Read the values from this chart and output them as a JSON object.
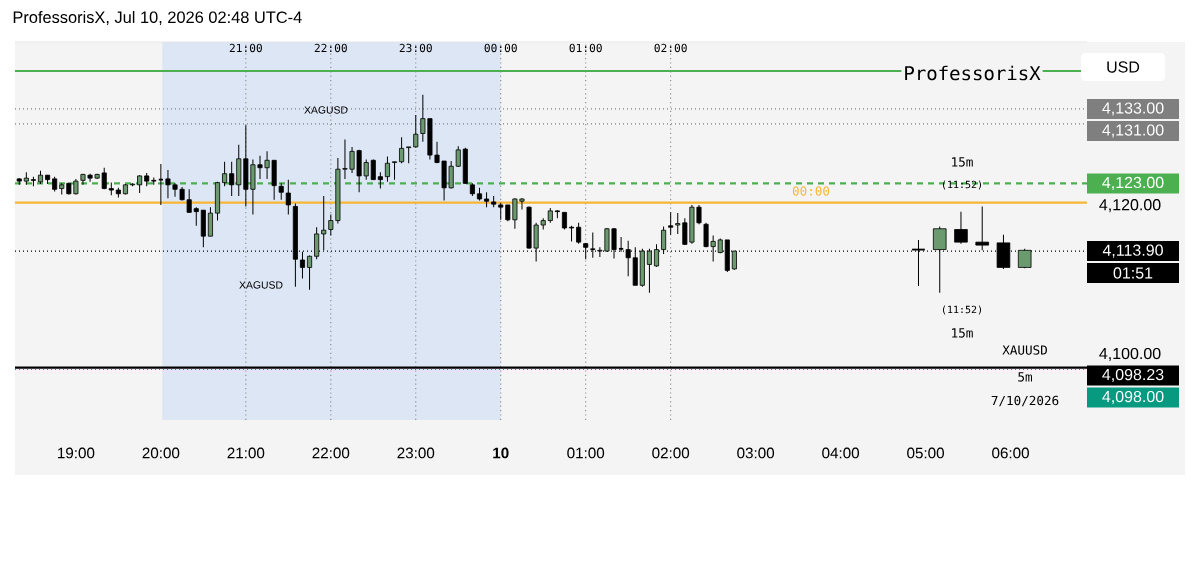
{
  "chart_data": {
    "type": "candlestick",
    "title": "ProfessorisX, Jul 10, 2026 02:48 UTC-4",
    "series": [
      {
        "colors": [
          "#000000",
          "#6b9a6e",
          "#000000",
          "#6b9a6e",
          "#000000",
          "#000000",
          "#6b9a6e",
          "#000000",
          "#6b9a6e",
          "#6b9a6e",
          "#000000",
          "#6b9a6e",
          "#000000",
          "#000000",
          "#000000",
          "#6b9a6e",
          "#6b9a6e",
          "#6b9a6e",
          "#000000",
          "#000000",
          "#000000",
          "#000000",
          "#000000",
          "#000000",
          "#000000",
          "#000000",
          "#000000",
          "#6b9a6e",
          "#6b9a6e",
          "#6b9a6e",
          "#000000",
          "#6b9a6e",
          "#000000",
          "#6b9a6e",
          "#000000",
          "#6b9a6e",
          "#000000",
          "#000000",
          "#000000",
          "#000000",
          "#000000",
          "#6b9a6e",
          "#6b9a6e",
          "#6b9a6e",
          "#6b9a6e",
          "#6b9a6e",
          "#6b9a6e",
          "#6b9a6e",
          "#000000",
          "#6b9a6e",
          "#000000",
          "#000000",
          "#6b9a6e",
          "#6b9a6e",
          "#6b9a6e",
          "#6b9a6e",
          "#6b9a6e",
          "#6b9a6e",
          "#000000",
          "#000000",
          "#000000",
          "#6b9a6e",
          "#6b9a6e",
          "#000000",
          "#000000",
          "#000000",
          "#000000",
          "#000000",
          "#000000",
          "#000000",
          "#6b9a6e",
          "#6b9a6e",
          "#000000",
          "#6b9a6e",
          "#6b9a6e",
          "#6b9a6e",
          "#000000",
          "#000000",
          "#000000",
          "#000000",
          "#000000",
          "#000000",
          "#6b9a6e",
          "#6b9a6e",
          "#000000",
          "#000000",
          "#000000",
          "#000000",
          "#6b9a6e",
          "#6b9a6e",
          "#6b9a6e",
          "#6b9a6e",
          "#000000",
          "#6b9a6e",
          "#000000",
          "#6b9a6e",
          "#000000",
          "#000000",
          "#6b9a6e",
          "#6b9a6e",
          "#000000",
          "#6b9a6e"
        ],
        "x": [
          "2026-07-09T18:20",
          "2026-07-09T18:25",
          "2026-07-09T18:30",
          "2026-07-09T18:35",
          "2026-07-09T18:40",
          "2026-07-09T18:45",
          "2026-07-09T18:50",
          "2026-07-09T18:55",
          "2026-07-09T19:00",
          "2026-07-09T19:05",
          "2026-07-09T19:10",
          "2026-07-09T19:15",
          "2026-07-09T19:20",
          "2026-07-09T19:25",
          "2026-07-09T19:30",
          "2026-07-09T19:35",
          "2026-07-09T19:40",
          "2026-07-09T19:45",
          "2026-07-09T19:50",
          "2026-07-09T19:55",
          "2026-07-09T20:00",
          "2026-07-09T20:05",
          "2026-07-09T20:10",
          "2026-07-09T20:15",
          "2026-07-09T20:20",
          "2026-07-09T20:25",
          "2026-07-09T20:30",
          "2026-07-09T20:35",
          "2026-07-09T20:40",
          "2026-07-09T20:45",
          "2026-07-09T20:50",
          "2026-07-09T20:55",
          "2026-07-09T21:00",
          "2026-07-09T21:05",
          "2026-07-09T21:10",
          "2026-07-09T21:15",
          "2026-07-09T21:20",
          "2026-07-09T21:25",
          "2026-07-09T21:30",
          "2026-07-09T21:35",
          "2026-07-09T21:40",
          "2026-07-09T21:45",
          "2026-07-09T21:50",
          "2026-07-09T21:55",
          "2026-07-09T22:00",
          "2026-07-09T22:05",
          "2026-07-09T22:10",
          "2026-07-09T22:15",
          "2026-07-09T22:20",
          "2026-07-09T22:25",
          "2026-07-09T22:30",
          "2026-07-09T22:35",
          "2026-07-09T22:40",
          "2026-07-09T22:45",
          "2026-07-09T22:50",
          "2026-07-09T22:55",
          "2026-07-09T23:00",
          "2026-07-09T23:05",
          "2026-07-09T23:10",
          "2026-07-09T23:15",
          "2026-07-09T23:20",
          "2026-07-09T23:25",
          "2026-07-09T23:30",
          "2026-07-09T23:35",
          "2026-07-09T23:40",
          "2026-07-09T23:45",
          "2026-07-09T23:50",
          "2026-07-09T23:55",
          "2026-07-10T00:00",
          "2026-07-10T00:05",
          "2026-07-10T00:10",
          "2026-07-10T00:15",
          "2026-07-10T00:20",
          "2026-07-10T00:25",
          "2026-07-10T00:30",
          "2026-07-10T00:35",
          "2026-07-10T00:40",
          "2026-07-10T00:45",
          "2026-07-10T00:50",
          "2026-07-10T00:55",
          "2026-07-10T01:00",
          "2026-07-10T01:05",
          "2026-07-10T01:10",
          "2026-07-10T01:15",
          "2026-07-10T01:20",
          "2026-07-10T01:25",
          "2026-07-10T01:30",
          "2026-07-10T01:35",
          "2026-07-10T01:40",
          "2026-07-10T01:45",
          "2026-07-10T01:50",
          "2026-07-10T01:55",
          "2026-07-10T02:00",
          "2026-07-10T02:05",
          "2026-07-10T02:10",
          "2026-07-10T02:15",
          "2026-07-10T02:20",
          "2026-07-10T02:25",
          "2026-07-10T02:30",
          "2026-07-10T02:35",
          "2026-07-10T02:40",
          "2026-07-10T02:45"
        ],
        "ohlc": [
          [
            4123.6,
            4123.7,
            4122.8,
            4123.3
          ],
          [
            4123.3,
            4124.5,
            4122.8,
            4123.7
          ],
          [
            4123.5,
            4123.9,
            4122.6,
            4123.4
          ],
          [
            4123.2,
            4124.7,
            4122.9,
            4124.1
          ],
          [
            4124.1,
            4124.1,
            4122.9,
            4123.5
          ],
          [
            4123.6,
            4123.9,
            4121.9,
            4122.2
          ],
          [
            4122.3,
            4123.0,
            4121.5,
            4122.8
          ],
          [
            4123.0,
            4123.1,
            4121.5,
            4121.6
          ],
          [
            4121.6,
            4123.6,
            4121.5,
            4123.3
          ],
          [
            4123.4,
            4124.3,
            4122.8,
            4124.2
          ],
          [
            4124.1,
            4124.3,
            4123.2,
            4123.7
          ],
          [
            4123.7,
            4124.3,
            4123.6,
            4124.2
          ],
          [
            4124.4,
            4125.1,
            4122.2,
            4122.3
          ],
          [
            4122.3,
            4123.1,
            4121.4,
            4122.1
          ],
          [
            4122.1,
            4122.4,
            4121.1,
            4121.6
          ],
          [
            4121.6,
            4122.9,
            4121.5,
            4122.8
          ],
          [
            4122.8,
            4123.0,
            4122.6,
            4122.9
          ],
          [
            4122.8,
            4124.1,
            4121.7,
            4124.0
          ],
          [
            4124.0,
            4124.4,
            4122.6,
            4123.3
          ],
          [
            4123.4,
            4123.8,
            4122.8,
            4123.3
          ],
          [
            4123.5,
            4125.6,
            4120.1,
            4123.5
          ],
          [
            4123.6,
            4124.8,
            4121.0,
            4122.8
          ],
          [
            4122.8,
            4123.0,
            4121.2,
            4122.2
          ],
          [
            4122.2,
            4122.5,
            4120.7,
            4120.8
          ],
          [
            4120.8,
            4122.2,
            4119.1,
            4119.1
          ],
          [
            4119.6,
            4119.8,
            4117.3,
            4119.2
          ],
          [
            4119.4,
            4119.4,
            4114.4,
            4115.9
          ],
          [
            4115.9,
            4119.8,
            4115.9,
            4119.0
          ],
          [
            4119.0,
            4123.2,
            4118.0,
            4123.1
          ],
          [
            4123.1,
            4125.9,
            4122.6,
            4124.3
          ],
          [
            4124.3,
            4125.9,
            4121.3,
            4122.8
          ],
          [
            4122.8,
            4128.2,
            4121.3,
            4126.3
          ],
          [
            4126.3,
            4130.8,
            4119.9,
            4122.2
          ],
          [
            4122.2,
            4126.2,
            4118.8,
            4125.5
          ],
          [
            4125.5,
            4126.7,
            4123.6,
            4125.1
          ],
          [
            4125.1,
            4127.3,
            4123.6,
            4126.1
          ],
          [
            4126.1,
            4126.1,
            4120.8,
            4122.7
          ],
          [
            4122.6,
            4123.0,
            4120.8,
            4121.8
          ],
          [
            4121.7,
            4123.5,
            4118.8,
            4120.1
          ],
          [
            4119.9,
            4120.3,
            4109.1,
            4112.8
          ],
          [
            4112.7,
            4113.8,
            4110.2,
            4111.7
          ],
          [
            4111.7,
            4113.3,
            4108.7,
            4113.2
          ],
          [
            4113.2,
            4117.1,
            4112.8,
            4116.2
          ],
          [
            4116.2,
            4121.3,
            4114.0,
            4116.7
          ],
          [
            4116.8,
            4118.8,
            4116.0,
            4118.0
          ],
          [
            4118.0,
            4126.4,
            4117.6,
            4124.9
          ],
          [
            4124.9,
            4128.9,
            4123.6,
            4125.0
          ],
          [
            4124.9,
            4127.9,
            4124.4,
            4127.3
          ],
          [
            4127.4,
            4127.5,
            4121.8,
            4124.0
          ],
          [
            4124.0,
            4126.2,
            4123.5,
            4125.8
          ],
          [
            4126.1,
            4126.2,
            4123.5,
            4123.5
          ],
          [
            4123.9,
            4124.5,
            4122.3,
            4123.5
          ],
          [
            4123.9,
            4126.6,
            4123.2,
            4125.7
          ],
          [
            4125.8,
            4125.9,
            4123.5,
            4125.9
          ],
          [
            4125.9,
            4129.2,
            4125.7,
            4127.7
          ],
          [
            4127.8,
            4127.9,
            4125.7,
            4127.9
          ],
          [
            4127.9,
            4132.2,
            4127.8,
            4129.6
          ],
          [
            4129.7,
            4134.9,
            4128.6,
            4131.7
          ],
          [
            4131.7,
            4131.7,
            4126.2,
            4126.8
          ],
          [
            4126.8,
            4128.6,
            4125.7,
            4125.8
          ],
          [
            4126.0,
            4126.0,
            4120.7,
            4122.4
          ],
          [
            4122.4,
            4126.0,
            4122.3,
            4125.3
          ],
          [
            4125.3,
            4128.0,
            4125.2,
            4127.5
          ],
          [
            4127.6,
            4127.8,
            4122.9,
            4123.0
          ],
          [
            4122.8,
            4123.0,
            4121.3,
            4121.6
          ],
          [
            4121.6,
            4122.4,
            4120.7,
            4120.9
          ],
          [
            4120.9,
            4121.8,
            4119.8,
            4120.6
          ],
          [
            4120.5,
            4121.3,
            4119.8,
            4120.2
          ],
          [
            4120.1,
            4120.4,
            4118.1,
            4119.8
          ],
          [
            4120.1,
            4120.1,
            4117.9,
            4118.1
          ],
          [
            4118.1,
            4121.0,
            4116.9,
            4120.9
          ],
          [
            4120.6,
            4121.0,
            4119.5,
            4120.9
          ],
          [
            4119.8,
            4119.9,
            4114.2,
            4114.3
          ],
          [
            4114.3,
            4117.7,
            4112.5,
            4117.4
          ],
          [
            4117.4,
            4118.3,
            4116.8,
            4118.0
          ],
          [
            4118.0,
            4119.7,
            4117.7,
            4119.3
          ],
          [
            4119.3,
            4119.4,
            4118.3,
            4119.2
          ],
          [
            4119.1,
            4119.1,
            4116.8,
            4117.0
          ],
          [
            4117.1,
            4117.3,
            4115.2,
            4117.0
          ],
          [
            4117.1,
            4117.7,
            4114.9,
            4115.1
          ],
          [
            4114.9,
            4115.0,
            4112.8,
            4114.4
          ],
          [
            4114.2,
            4116.4,
            4113.0,
            4114.1
          ],
          [
            4113.9,
            4114.4,
            4113.1,
            4114.0
          ],
          [
            4113.9,
            4117.0,
            4113.8,
            4116.9
          ],
          [
            4116.9,
            4117.0,
            4112.9,
            4114.1
          ],
          [
            4114.2,
            4115.8,
            4113.8,
            4114.2
          ],
          [
            4114.1,
            4115.3,
            4110.5,
            4113.0
          ],
          [
            4113.0,
            4114.4,
            4109.3,
            4109.3
          ],
          [
            4109.3,
            4114.2,
            4109.1,
            4113.9
          ],
          [
            4112.1,
            4114.2,
            4108.3,
            4113.9
          ],
          [
            4111.9,
            4114.8,
            4111.8,
            4114.1
          ],
          [
            4114.1,
            4117.2,
            4113.5,
            4116.7
          ],
          [
            4117.3,
            4119.1,
            4116.1,
            4117.1
          ],
          [
            4117.4,
            4119.0,
            4116.2,
            4117.6
          ],
          [
            4117.7,
            4118.3,
            4114.7,
            4114.8
          ],
          [
            4115.1,
            4120.1,
            4114.9,
            4119.8
          ],
          [
            4119.8,
            4120.1,
            4117.5,
            4117.7
          ],
          [
            4117.5,
            4117.7,
            4114.4,
            4114.5
          ],
          [
            4114.5,
            4116.0,
            4112.5,
            4115.2
          ],
          [
            4113.7,
            4115.6,
            4113.6,
            4115.4
          ],
          [
            4115.4,
            4115.4,
            4111.1,
            4111.3
          ],
          [
            4111.5,
            4113.9,
            4111.4,
            4113.9
          ]
        ]
      },
      {
        "colors": [
          "#000000",
          "#6b9a6e",
          "#000000",
          "#000000",
          "#000000",
          "#6b9a6e"
        ],
        "x": [
          "2026-07-10T04:55",
          "2026-07-10T05:10",
          "2026-07-10T05:25",
          "2026-07-10T05:40",
          "2026-07-10T05:55",
          "2026-07-10T06:10"
        ],
        "ohlc": [
          [
            4114.1,
            4115.4,
            4109.2,
            4114.1
          ],
          [
            4114.1,
            4117.2,
            4108.3,
            4116.9
          ],
          [
            4116.8,
            4119.2,
            4114.9,
            4115.1
          ],
          [
            4115.1,
            4119.9,
            4114.0,
            4114.7
          ],
          [
            4115.0,
            4116.1,
            4111.5,
            4111.7
          ],
          [
            4111.7,
            4114.2,
            4111.6,
            4114.0
          ]
        ]
      }
    ],
    "xlim": [
      "2026-07-09T18:17",
      "2026-07-10T06:54"
    ],
    "xticks": [
      {
        "value": "2026-07-09T19:00",
        "label": "19:00"
      },
      {
        "value": "2026-07-09T20:00",
        "label": "20:00"
      },
      {
        "value": "2026-07-09T21:00",
        "label": "21:00"
      },
      {
        "value": "2026-07-09T22:00",
        "label": "22:00"
      },
      {
        "value": "2026-07-09T23:00",
        "label": "23:00"
      },
      {
        "value": "2026-07-10T00:00",
        "label": "10"
      },
      {
        "value": "2026-07-10T01:00",
        "label": "01:00"
      },
      {
        "value": "2026-07-10T02:00",
        "label": "02:00"
      },
      {
        "value": "2026-07-10T03:00",
        "label": "03:00"
      },
      {
        "value": "2026-07-10T04:00",
        "label": "04:00"
      },
      {
        "value": "2026-07-10T05:00",
        "label": "05:00"
      },
      {
        "value": "2026-07-10T06:00",
        "label": "06:00"
      }
    ],
    "x2lim": [
      "2026-07-09T18:17",
      "2026-07-10T06:54"
    ],
    "x2ticks": [
      {
        "value": "2026-07-09T21:00",
        "label": "21:00"
      },
      {
        "value": "2026-07-09T22:00",
        "label": "22:00"
      },
      {
        "value": "2026-07-09T23:00",
        "label": "23:00"
      },
      {
        "value": "2026-07-10T00:00",
        "label": "00:00"
      },
      {
        "value": "2026-07-10T01:00",
        "label": "01:00"
      },
      {
        "value": "2026-07-10T02:00",
        "label": "02:00"
      }
    ],
    "ylim": [
      4091.2,
      4142.0
    ],
    "yticks": [
      {
        "value": 4100,
        "label": "4,100.00"
      },
      {
        "value": 4120,
        "label": "4,120.00"
      }
    ],
    "grid": "x",
    "bands": [
      {
        "axis": "x",
        "from": "2026-07-09T20:01",
        "to": "2026-07-10T00:00",
        "color": "#dde6f5"
      }
    ],
    "ref_lines": [
      {
        "axis": "y",
        "value": 4138.1,
        "color": "#4caf50",
        "line_style": "solid"
      },
      {
        "axis": "y",
        "value": 4133,
        "label": "4,133.00",
        "color": "#7f7f7f",
        "line_style": "dotted"
      },
      {
        "axis": "y",
        "value": 4131,
        "label": "4,131.00",
        "color": "#7f7f7f",
        "line_style": "dotted"
      },
      {
        "axis": "y",
        "value": 4123,
        "label": "4,123.00",
        "color": "#4caf50",
        "line_style": "dashed"
      },
      {
        "axis": "y",
        "value": 4120.4,
        "color": "#f7b633",
        "line_style": "solid"
      },
      {
        "axis": "y",
        "value": 4113.9,
        "label": "4,113.90",
        "color": "#000000",
        "line_style": "dotted"
      },
      {
        "axis": "y",
        "value": 4098.23,
        "label": "4,098.23",
        "color": "#000000",
        "line_style": "solid"
      },
      {
        "axis": "y",
        "value": 4098,
        "label": "4,098.00",
        "color": "#089981",
        "line_style": "dotted"
      }
    ],
    "annotations": [
      "ProfessorisX",
      "USD",
      "XAGUSD",
      "XAGUSD",
      "15m",
      "(11:52)",
      "(11:52)",
      "15m",
      "XAUUSD",
      "5m",
      "7/10/2026",
      "00:00",
      "01:51"
    ]
  }
}
